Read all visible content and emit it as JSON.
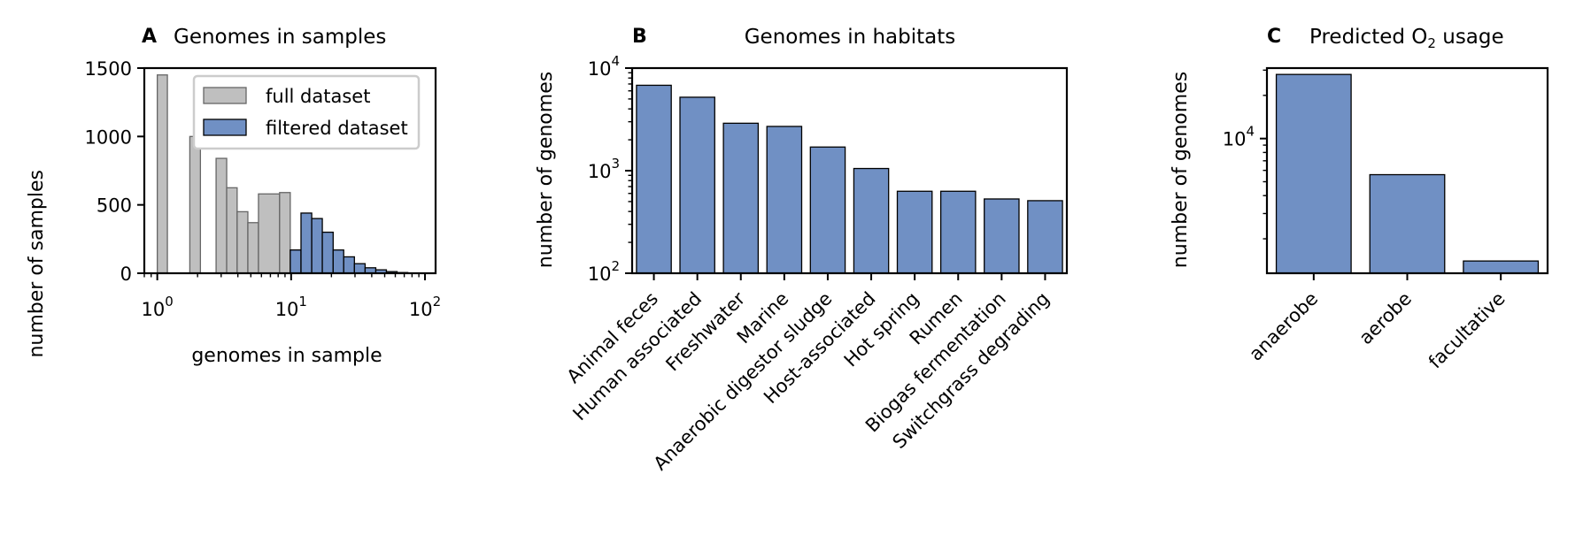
{
  "colors": {
    "full": "#bfbfbf",
    "full_edge": "#666666",
    "filtered": "#7090c4",
    "edge": "#000000"
  },
  "chart_data": [
    {
      "panel": "A",
      "type": "histogram",
      "title": "Genomes in samples",
      "xlabel": "genomes in sample",
      "ylabel": "number of samples",
      "xscale": "log",
      "xlim": [
        0.8,
        120
      ],
      "ylim": [
        0,
        1500
      ],
      "xticks": [
        {
          "value": 1,
          "base": "10",
          "exp": "0"
        },
        {
          "value": 10,
          "base": "10",
          "exp": "1"
        },
        {
          "value": 100,
          "base": "10",
          "exp": "2"
        }
      ],
      "yticks": [
        0,
        500,
        1000,
        1500
      ],
      "grid": false,
      "legend_position": "top-right",
      "series": [
        {
          "name": "full dataset",
          "bins": [
            {
              "x0": 1.0,
              "x1": 1.19,
              "count": 1450
            },
            {
              "x0": 1.75,
              "x1": 2.1,
              "count": 1000
            },
            {
              "x0": 2.75,
              "x1": 3.3,
              "count": 840
            },
            {
              "x0": 3.3,
              "x1": 3.95,
              "count": 625
            },
            {
              "x0": 3.95,
              "x1": 4.75,
              "count": 450
            },
            {
              "x0": 4.75,
              "x1": 5.7,
              "count": 370
            },
            {
              "x0": 5.7,
              "x1": 8.2,
              "count": 580
            },
            {
              "x0": 8.2,
              "x1": 9.85,
              "count": 590
            },
            {
              "x0": 9.85,
              "x1": 11.85,
              "count": 170
            }
          ]
        },
        {
          "name": "filtered dataset",
          "bins": [
            {
              "x0": 9.85,
              "x1": 11.85,
              "count": 170
            },
            {
              "x0": 11.85,
              "x1": 14.25,
              "count": 440
            },
            {
              "x0": 14.25,
              "x1": 17.1,
              "count": 400
            },
            {
              "x0": 17.1,
              "x1": 20.6,
              "count": 300
            },
            {
              "x0": 20.6,
              "x1": 24.7,
              "count": 170
            },
            {
              "x0": 24.7,
              "x1": 29.7,
              "count": 120
            },
            {
              "x0": 29.7,
              "x1": 35.7,
              "count": 70
            },
            {
              "x0": 35.7,
              "x1": 42.9,
              "count": 40
            },
            {
              "x0": 42.9,
              "x1": 51.5,
              "count": 25
            },
            {
              "x0": 51.5,
              "x1": 61.9,
              "count": 12
            },
            {
              "x0": 61.9,
              "x1": 74.4,
              "count": 5
            },
            {
              "x0": 74.4,
              "x1": 89.4,
              "count": 2
            }
          ]
        }
      ]
    },
    {
      "panel": "B",
      "type": "bar",
      "title": "Genomes in habitats",
      "ylabel": "number of genomes",
      "yscale": "log",
      "ylim": [
        100,
        10000
      ],
      "yticks": [
        {
          "value": 100,
          "base": "10",
          "exp": "2"
        },
        {
          "value": 1000,
          "base": "10",
          "exp": "3"
        },
        {
          "value": 10000,
          "base": "10",
          "exp": "4"
        }
      ],
      "categories": [
        "Animal feces",
        "Human associated",
        "Freshwater",
        "Marine",
        "Anaerobic digestor sludge",
        "Host-associated",
        "Hot spring",
        "Rumen",
        "Biogas fermentation",
        "Switchgrass degrading"
      ],
      "values": [
        6800,
        5200,
        2900,
        2700,
        1700,
        1050,
        630,
        630,
        530,
        510
      ],
      "grid": false
    },
    {
      "panel": "C",
      "type": "bar",
      "title_main": "Predicted O",
      "title_sub": "2",
      "title_tail": " usage",
      "ylabel": "number of genomes",
      "yscale": "log",
      "ylim": [
        1150,
        31000
      ],
      "yticks": [
        {
          "value": 10000,
          "base": "10",
          "exp": "4"
        }
      ],
      "categories": [
        "anaerobe",
        "aerobe",
        "facultative"
      ],
      "values": [
        28000,
        5600,
        1400
      ],
      "grid": false
    }
  ]
}
